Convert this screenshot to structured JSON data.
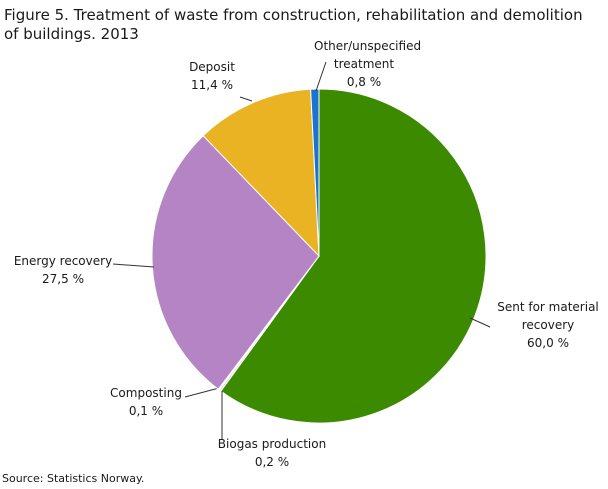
{
  "chart_data": {
    "type": "pie",
    "title": "Figure 5. Treatment of waste from construction, rehabilitation and demolition of buildings. 2013",
    "source": "Source: Statistics Norway.",
    "categories": [
      "Sent for material recovery",
      "Biogas production",
      "Composting",
      "Energy recovery",
      "Deposit",
      "Other/unspecified treatment"
    ],
    "values": [
      60.0,
      0.2,
      0.1,
      27.5,
      11.4,
      0.8
    ],
    "value_labels": [
      "60,0 %",
      "0,2 %",
      "0,1 %",
      "27,5 %",
      "11,4 %",
      "0,8 %"
    ],
    "colors": [
      "#3b8a00",
      "#e0e0e0",
      "#9a9a9a",
      "#b584c5",
      "#e9b323",
      "#1b74d0"
    ]
  }
}
